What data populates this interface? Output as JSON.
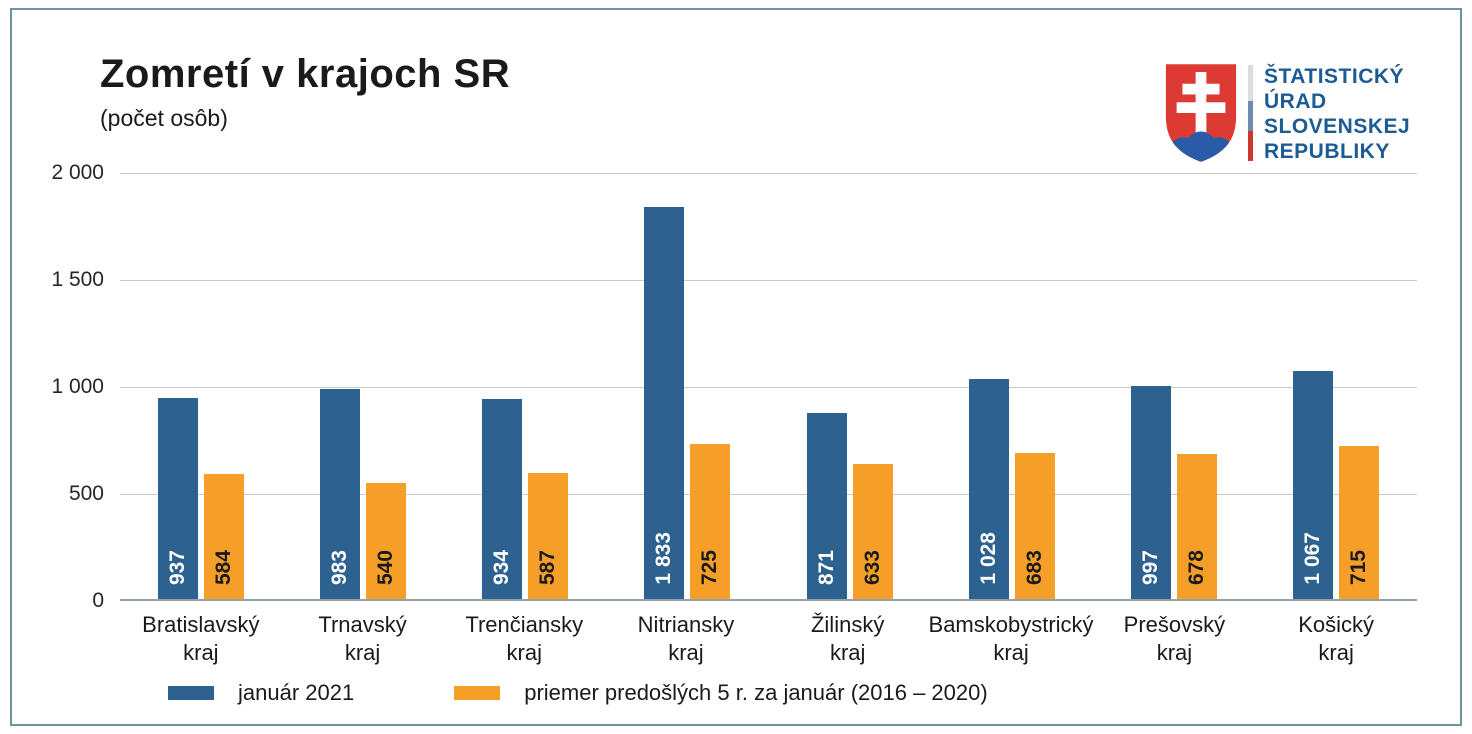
{
  "header": {
    "title": "Zomretí v krajoch SR",
    "subtitle": "(počet osôb)"
  },
  "logo": {
    "lines": [
      "ŠTATISTICKÝ",
      "ÚRAD",
      "SLOVENSKEJ",
      "REPUBLIKY"
    ],
    "colors": {
      "shield_red": "#dd3a34",
      "shield_blue": "#2a5ba6",
      "cross_white": "#ffffff",
      "text_blue": "#1d5b94",
      "stripe_top": "#dcdcdc",
      "stripe_middle": "#7188ae",
      "stripe_bottom": "#cf372f"
    }
  },
  "chart_data": {
    "type": "bar",
    "title": "Zomretí v krajoch SR",
    "subtitle": "(počet osôb)",
    "categories": [
      "Bratislavský\nkraj",
      "Trnavský\nkraj",
      "Trenčiansky\nkraj",
      "Nitriansky\nkraj",
      "Žilinský\nkraj",
      "Bamskobystrický\nkraj",
      "Prešovský\nkraj",
      "Košický\nkraj"
    ],
    "series": [
      {
        "name": "január 2021",
        "color": "#2d6190",
        "values": [
          937,
          983,
          934,
          1833,
          871,
          1028,
          997,
          1067
        ],
        "labels": [
          "937",
          "983",
          "934",
          "1 833",
          "871",
          "1 028",
          "997",
          "1 067"
        ],
        "label_color": "#ffffff"
      },
      {
        "name": "priemer predošlých 5 r. za január (2016 – 2020)",
        "color": "#f59f29",
        "values": [
          584,
          540,
          587,
          725,
          633,
          683,
          678,
          715
        ],
        "labels": [
          "584",
          "540",
          "587",
          "725",
          "633",
          "683",
          "678",
          "715"
        ],
        "label_color": "#1a1a1a"
      }
    ],
    "ylim": [
      0,
      2000
    ],
    "yticks": [
      {
        "value": 0,
        "label": "0"
      },
      {
        "value": 500,
        "label": "500"
      },
      {
        "value": 1000,
        "label": "1 000"
      },
      {
        "value": 1500,
        "label": "1 500"
      },
      {
        "value": 2000,
        "label": "2 000"
      }
    ],
    "grid": true,
    "legend_position": "bottom"
  },
  "colors": {
    "frame_border": "#6d93a0",
    "gridline": "#c6cbd0",
    "axis_line": "#99a1a8",
    "background": "#ffffff"
  }
}
